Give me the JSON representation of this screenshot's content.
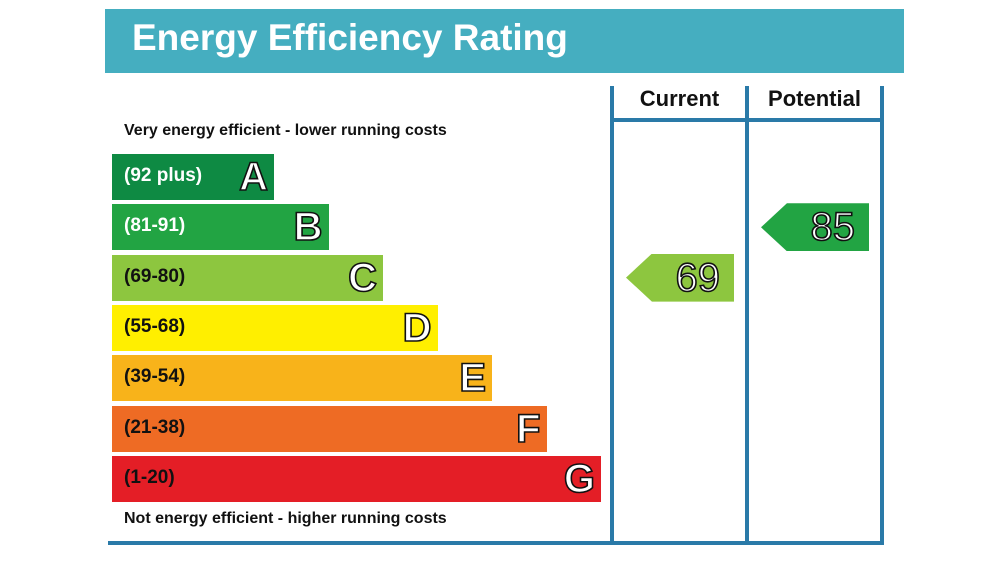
{
  "header": {
    "title": "Energy Efficiency Rating",
    "background": "#45aec0"
  },
  "chart_data": {
    "type": "bar",
    "title": "Energy Efficiency Rating",
    "top_caption": "Very energy efficient - lower running costs",
    "bottom_caption": "Not energy efficient - higher running costs",
    "bands": [
      {
        "letter": "A",
        "range": "(92 plus)",
        "color": "#0e8a43",
        "text_color": "#ffffff"
      },
      {
        "letter": "B",
        "range": "(81-91)",
        "color": "#22a443",
        "text_color": "#ffffff"
      },
      {
        "letter": "C",
        "range": "(69-80)",
        "color": "#8dc63f",
        "text_color": "#111111"
      },
      {
        "letter": "D",
        "range": "(55-68)",
        "color": "#ffef00",
        "text_color": "#111111"
      },
      {
        "letter": "E",
        "range": "(39-54)",
        "color": "#f8b31a",
        "text_color": "#111111"
      },
      {
        "letter": "F",
        "range": "(21-38)",
        "color": "#ee6b24",
        "text_color": "#111111"
      },
      {
        "letter": "G",
        "range": "(1-20)",
        "color": "#e41e26",
        "text_color": "#111111"
      }
    ],
    "columns": [
      "Current",
      "Potential"
    ],
    "current": {
      "value": 69,
      "band": "C",
      "color": "#8dc63f"
    },
    "potential": {
      "value": 85,
      "band": "B",
      "color": "#22a443"
    }
  }
}
